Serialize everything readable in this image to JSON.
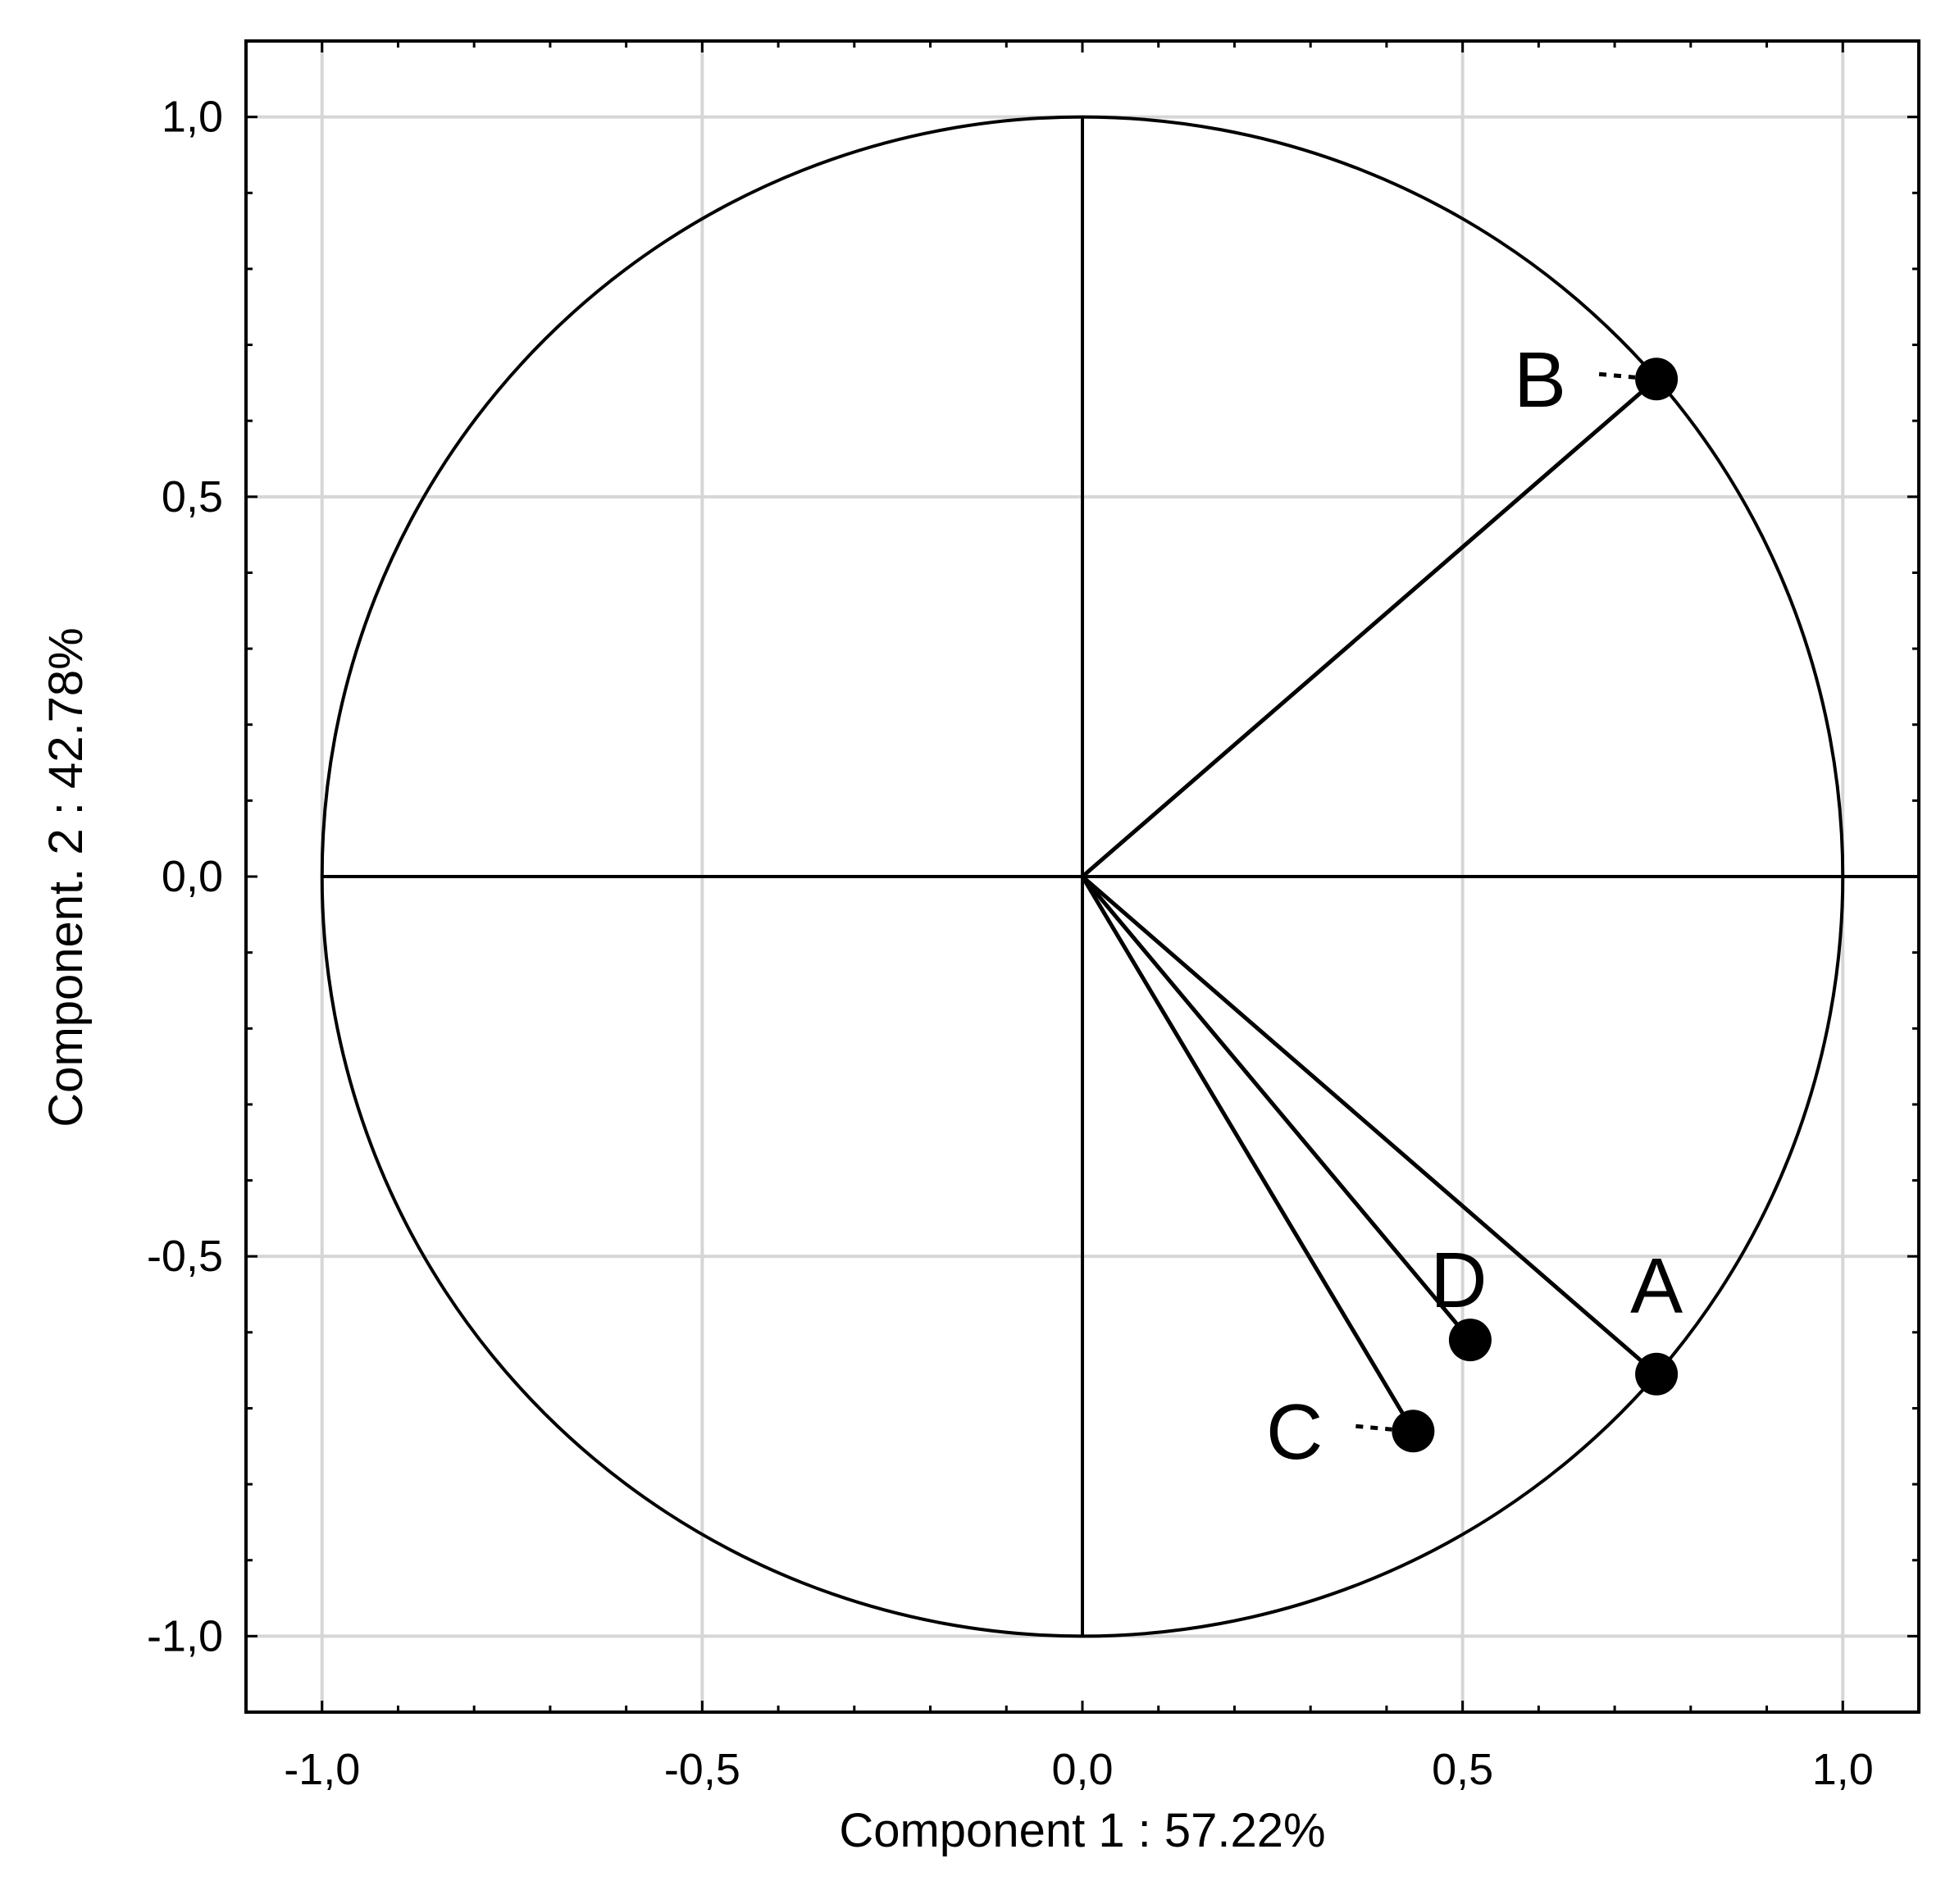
{
  "chart_data": {
    "type": "scatter",
    "title": "",
    "xlabel": "Component 1 : 57.22%",
    "ylabel": "Component. 2 : 42.78%",
    "xlim": [
      -1.1,
      1.1
    ],
    "ylim": [
      -1.1,
      1.1
    ],
    "xticks": [
      -1.0,
      -0.5,
      0.0,
      0.5,
      1.0
    ],
    "yticks": [
      -1.0,
      -0.5,
      0.0,
      0.5,
      1.0
    ],
    "xtick_labels": [
      "-1,0",
      "-0,5",
      "0,0",
      "0,5",
      "1,0"
    ],
    "ytick_labels": [
      "-1,0",
      "-0,5",
      "0,0",
      "0,5",
      "1,0"
    ],
    "grid": true,
    "unit_circle": true,
    "points": [
      {
        "label": "A",
        "x": 0.755,
        "y": -0.655,
        "on_circle": true,
        "label_position": "above"
      },
      {
        "label": "B",
        "x": 0.755,
        "y": 0.655,
        "on_circle": true,
        "label_position": "left"
      },
      {
        "label": "C",
        "x": 0.435,
        "y": -0.73,
        "on_circle": false,
        "label_position": "left"
      },
      {
        "label": "D",
        "x": 0.51,
        "y": -0.61,
        "on_circle": false,
        "label_position": "above"
      }
    ]
  }
}
